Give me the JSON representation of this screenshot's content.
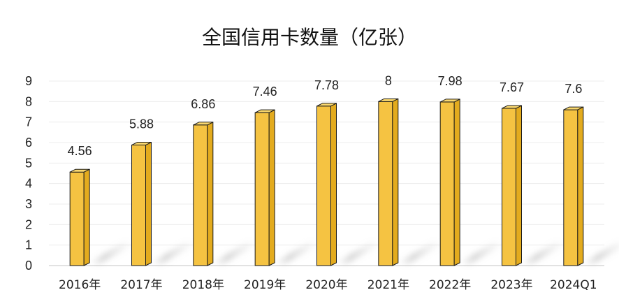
{
  "chart_data": {
    "type": "bar",
    "title": "全国信用卡数量（亿张）",
    "categories": [
      "2016年",
      "2017年",
      "2018年",
      "2019年",
      "2020年",
      "2021年",
      "2022年",
      "2023年",
      "2024Q1"
    ],
    "values": [
      4.56,
      5.88,
      6.86,
      7.46,
      7.78,
      8,
      7.98,
      7.67,
      7.6
    ],
    "data_labels": [
      "4.56",
      "5.88",
      "6.86",
      "7.46",
      "7.78",
      "8",
      "7.98",
      "7.67",
      "7.6"
    ],
    "ylim": [
      0,
      9
    ],
    "yticks": [
      0,
      1,
      2,
      3,
      4,
      5,
      6,
      7,
      8,
      9
    ],
    "xlabel": "",
    "ylabel": "",
    "grid": true,
    "legend": "none",
    "bar_color": "#f5c342",
    "bar_side_color": "#e3ab1e",
    "bar_top_color": "#fad86e",
    "bar_stroke": "#1a1a1a"
  }
}
